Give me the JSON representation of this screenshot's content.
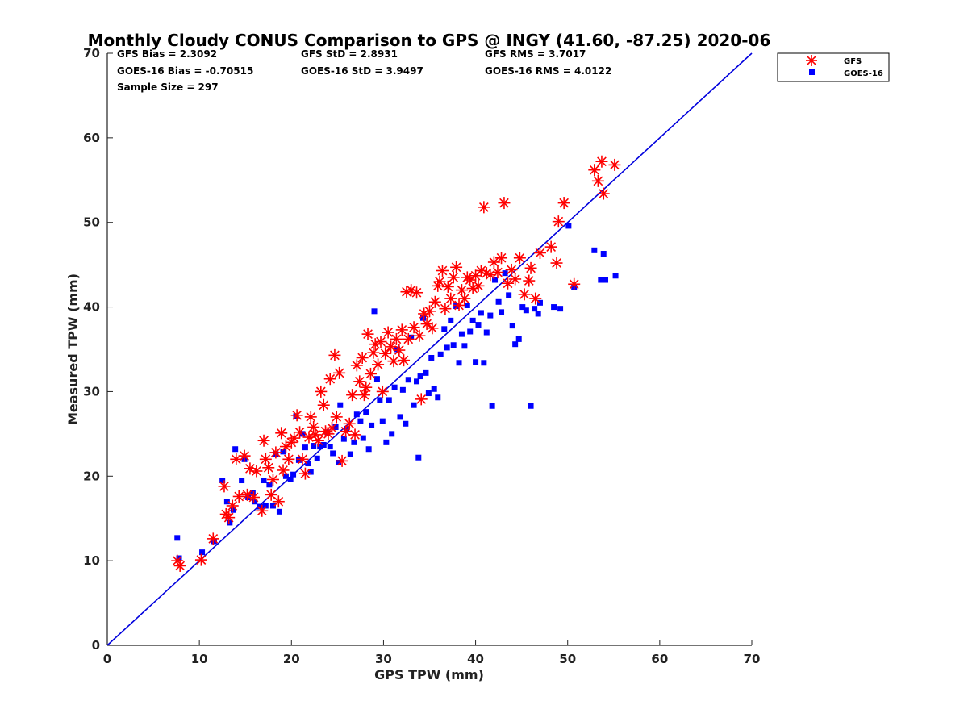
{
  "chart_data": {
    "type": "scatter",
    "title": "Monthly Cloudy CONUS Comparison to GPS @ INGY (41.60, -87.25) 2020-06",
    "xlabel": "GPS TPW (mm)",
    "ylabel": "Measured TPW (mm)",
    "xlim": [
      0,
      70
    ],
    "ylim": [
      0,
      70
    ],
    "xticks": [
      0,
      10,
      20,
      30,
      40,
      50,
      60,
      70
    ],
    "yticks": [
      0,
      10,
      20,
      30,
      40,
      50,
      60,
      70
    ],
    "xtick_labels": [
      "0",
      "10",
      "20",
      "30",
      "40",
      "50",
      "60",
      "70"
    ],
    "ytick_labels": [
      "0",
      "10",
      "20",
      "30",
      "40",
      "50",
      "60",
      "70"
    ],
    "grid": false,
    "legend_position": "top-right-outside",
    "reference_line": {
      "name": "1:1 line",
      "from": [
        0,
        0
      ],
      "to": [
        70,
        70
      ],
      "color": "#0000dd"
    },
    "stats": {
      "gfs_bias": "GFS Bias = 2.3092",
      "gfs_std": "GFS StD = 2.8931",
      "gfs_rms": "GFS RMS = 3.7017",
      "goes_bias": "GOES-16 Bias = -0.70515",
      "goes_std": "GOES-16 StD = 3.9497",
      "goes_rms": "GOES-16 RMS = 4.0122",
      "sample_size": "Sample Size = 297"
    },
    "series": [
      {
        "name": "GFS",
        "marker": "asterisk",
        "color": "#ff0000",
        "points": [
          [
            7.6,
            10.0
          ],
          [
            7.9,
            9.4
          ],
          [
            10.2,
            10.1
          ],
          [
            11.5,
            12.6
          ],
          [
            12.7,
            18.8
          ],
          [
            12.9,
            15.5
          ],
          [
            13.2,
            15.1
          ],
          [
            13.6,
            16.5
          ],
          [
            14.0,
            22.0
          ],
          [
            14.3,
            17.6
          ],
          [
            14.9,
            22.4
          ],
          [
            15.2,
            17.8
          ],
          [
            15.5,
            20.9
          ],
          [
            15.9,
            17.5
          ],
          [
            16.2,
            20.6
          ],
          [
            16.8,
            15.9
          ],
          [
            17.0,
            24.2
          ],
          [
            17.2,
            22.0
          ],
          [
            17.5,
            21.0
          ],
          [
            17.8,
            17.8
          ],
          [
            18.0,
            19.6
          ],
          [
            18.3,
            22.8
          ],
          [
            18.6,
            17.0
          ],
          [
            18.9,
            25.1
          ],
          [
            19.1,
            20.7
          ],
          [
            19.4,
            23.5
          ],
          [
            19.7,
            22.0
          ],
          [
            20.0,
            24.0
          ],
          [
            20.3,
            24.5
          ],
          [
            20.6,
            27.2
          ],
          [
            20.9,
            25.2
          ],
          [
            21.2,
            22.0
          ],
          [
            21.5,
            20.3
          ],
          [
            21.9,
            24.6
          ],
          [
            22.1,
            27.0
          ],
          [
            22.4,
            25.8
          ],
          [
            22.6,
            24.9
          ],
          [
            22.9,
            24.2
          ],
          [
            23.2,
            30.0
          ],
          [
            23.5,
            28.4
          ],
          [
            23.7,
            25.3
          ],
          [
            24.0,
            25.0
          ],
          [
            24.2,
            31.5
          ],
          [
            24.4,
            25.7
          ],
          [
            24.7,
            34.3
          ],
          [
            24.9,
            27.0
          ],
          [
            25.2,
            32.2
          ],
          [
            25.5,
            21.8
          ],
          [
            25.9,
            25.3
          ],
          [
            26.3,
            26.2
          ],
          [
            26.6,
            29.6
          ],
          [
            26.9,
            24.9
          ],
          [
            27.1,
            33.1
          ],
          [
            27.4,
            31.2
          ],
          [
            27.7,
            34.0
          ],
          [
            27.9,
            29.6
          ],
          [
            28.1,
            30.5
          ],
          [
            28.3,
            36.8
          ],
          [
            28.6,
            32.1
          ],
          [
            28.9,
            34.6
          ],
          [
            29.1,
            35.6
          ],
          [
            29.4,
            33.2
          ],
          [
            29.7,
            35.9
          ],
          [
            29.9,
            30.0
          ],
          [
            30.2,
            34.5
          ],
          [
            30.5,
            37.0
          ],
          [
            30.8,
            35.3
          ],
          [
            31.1,
            33.6
          ],
          [
            31.4,
            36.2
          ],
          [
            31.7,
            34.9
          ],
          [
            32.0,
            37.3
          ],
          [
            32.2,
            33.7
          ],
          [
            32.5,
            41.8
          ],
          [
            32.7,
            36.2
          ],
          [
            33.0,
            42.0
          ],
          [
            33.3,
            37.6
          ],
          [
            33.6,
            41.7
          ],
          [
            33.9,
            36.6
          ],
          [
            34.1,
            29.1
          ],
          [
            34.4,
            39.2
          ],
          [
            34.7,
            38.0
          ],
          [
            35.0,
            39.5
          ],
          [
            35.3,
            37.5
          ],
          [
            35.6,
            40.6
          ],
          [
            35.9,
            42.5
          ],
          [
            36.1,
            43.0
          ],
          [
            36.4,
            44.3
          ],
          [
            36.7,
            39.8
          ],
          [
            37.0,
            42.4
          ],
          [
            37.3,
            41.0
          ],
          [
            37.6,
            43.5
          ],
          [
            37.9,
            44.7
          ],
          [
            38.2,
            40.2
          ],
          [
            38.5,
            42.0
          ],
          [
            38.8,
            41.0
          ],
          [
            39.1,
            43.5
          ],
          [
            39.4,
            43.2
          ],
          [
            39.7,
            42.2
          ],
          [
            40.0,
            43.7
          ],
          [
            40.3,
            42.5
          ],
          [
            40.6,
            44.3
          ],
          [
            40.9,
            51.8
          ],
          [
            41.2,
            44.0
          ],
          [
            41.6,
            43.8
          ],
          [
            42.0,
            45.3
          ],
          [
            42.4,
            44.1
          ],
          [
            42.8,
            45.8
          ],
          [
            43.1,
            52.3
          ],
          [
            43.5,
            42.8
          ],
          [
            43.9,
            44.4
          ],
          [
            44.3,
            43.3
          ],
          [
            44.8,
            45.8
          ],
          [
            45.3,
            41.5
          ],
          [
            45.8,
            43.1
          ],
          [
            46.0,
            44.6
          ],
          [
            46.5,
            41.0
          ],
          [
            47.0,
            46.4
          ],
          [
            48.2,
            47.1
          ],
          [
            48.8,
            45.2
          ],
          [
            49.0,
            50.1
          ],
          [
            49.6,
            52.3
          ],
          [
            50.7,
            42.7
          ],
          [
            52.9,
            56.2
          ],
          [
            53.3,
            54.9
          ],
          [
            53.7,
            57.2
          ],
          [
            53.9,
            53.4
          ],
          [
            55.1,
            56.8
          ]
        ]
      },
      {
        "name": "GOES-16",
        "marker": "square",
        "color": "#0000ff",
        "points": [
          [
            7.6,
            12.7
          ],
          [
            7.8,
            10.3
          ],
          [
            10.3,
            11.0
          ],
          [
            11.6,
            12.3
          ],
          [
            12.5,
            19.5
          ],
          [
            13.0,
            17.0
          ],
          [
            13.3,
            14.5
          ],
          [
            13.7,
            16.0
          ],
          [
            13.9,
            23.2
          ],
          [
            14.6,
            19.5
          ],
          [
            14.9,
            22.0
          ],
          [
            15.3,
            17.5
          ],
          [
            15.8,
            18.0
          ],
          [
            16.0,
            17.0
          ],
          [
            16.6,
            16.4
          ],
          [
            17.0,
            19.5
          ],
          [
            17.2,
            16.5
          ],
          [
            17.6,
            19.0
          ],
          [
            18.0,
            16.5
          ],
          [
            18.3,
            22.6
          ],
          [
            18.7,
            15.8
          ],
          [
            19.1,
            22.9
          ],
          [
            19.4,
            20.0
          ],
          [
            19.9,
            19.6
          ],
          [
            20.2,
            20.2
          ],
          [
            20.5,
            27.1
          ],
          [
            20.8,
            21.9
          ],
          [
            21.2,
            25.0
          ],
          [
            21.5,
            23.4
          ],
          [
            21.8,
            21.5
          ],
          [
            22.1,
            20.5
          ],
          [
            22.4,
            23.6
          ],
          [
            22.8,
            22.1
          ],
          [
            23.1,
            23.5
          ],
          [
            23.5,
            23.7
          ],
          [
            23.9,
            25.2
          ],
          [
            24.2,
            23.5
          ],
          [
            24.5,
            22.7
          ],
          [
            24.8,
            25.8
          ],
          [
            25.1,
            21.6
          ],
          [
            25.3,
            28.4
          ],
          [
            25.7,
            24.4
          ],
          [
            26.0,
            25.6
          ],
          [
            26.4,
            22.6
          ],
          [
            26.8,
            24.0
          ],
          [
            27.1,
            27.3
          ],
          [
            27.5,
            26.5
          ],
          [
            27.8,
            24.5
          ],
          [
            28.1,
            27.6
          ],
          [
            28.4,
            23.2
          ],
          [
            28.7,
            26.0
          ],
          [
            29.0,
            39.5
          ],
          [
            29.3,
            31.5
          ],
          [
            29.6,
            29.0
          ],
          [
            29.9,
            26.5
          ],
          [
            30.3,
            24.0
          ],
          [
            30.6,
            29.0
          ],
          [
            30.9,
            25.0
          ],
          [
            31.2,
            30.5
          ],
          [
            31.5,
            35.0
          ],
          [
            31.8,
            27.0
          ],
          [
            32.1,
            30.2
          ],
          [
            32.4,
            26.2
          ],
          [
            32.7,
            31.4
          ],
          [
            33.0,
            36.4
          ],
          [
            33.3,
            28.4
          ],
          [
            33.6,
            31.2
          ],
          [
            33.8,
            22.2
          ],
          [
            34.0,
            31.8
          ],
          [
            34.3,
            38.7
          ],
          [
            34.6,
            32.2
          ],
          [
            34.9,
            29.8
          ],
          [
            35.2,
            34.0
          ],
          [
            35.5,
            30.3
          ],
          [
            35.9,
            29.3
          ],
          [
            36.2,
            34.4
          ],
          [
            36.6,
            37.4
          ],
          [
            36.9,
            35.2
          ],
          [
            37.3,
            38.4
          ],
          [
            37.6,
            35.5
          ],
          [
            37.9,
            40.1
          ],
          [
            38.2,
            33.4
          ],
          [
            38.5,
            36.8
          ],
          [
            38.8,
            35.4
          ],
          [
            39.1,
            40.2
          ],
          [
            39.4,
            37.1
          ],
          [
            39.7,
            38.4
          ],
          [
            40.0,
            33.5
          ],
          [
            40.3,
            37.9
          ],
          [
            40.6,
            39.3
          ],
          [
            40.9,
            33.4
          ],
          [
            41.2,
            37.0
          ],
          [
            41.6,
            39.0
          ],
          [
            41.8,
            28.3
          ],
          [
            42.1,
            43.2
          ],
          [
            42.5,
            40.6
          ],
          [
            42.8,
            39.4
          ],
          [
            43.2,
            44.0
          ],
          [
            43.6,
            41.4
          ],
          [
            44.0,
            37.8
          ],
          [
            44.3,
            35.6
          ],
          [
            44.7,
            36.2
          ],
          [
            45.1,
            40.0
          ],
          [
            45.5,
            39.6
          ],
          [
            46.0,
            28.3
          ],
          [
            46.4,
            39.8
          ],
          [
            46.8,
            39.2
          ],
          [
            47.0,
            40.5
          ],
          [
            48.5,
            40.0
          ],
          [
            49.2,
            39.8
          ],
          [
            50.1,
            49.6
          ],
          [
            50.7,
            42.3
          ],
          [
            52.9,
            46.7
          ],
          [
            53.6,
            43.2
          ],
          [
            53.9,
            46.3
          ],
          [
            54.1,
            43.2
          ],
          [
            55.2,
            43.7
          ]
        ]
      }
    ]
  }
}
